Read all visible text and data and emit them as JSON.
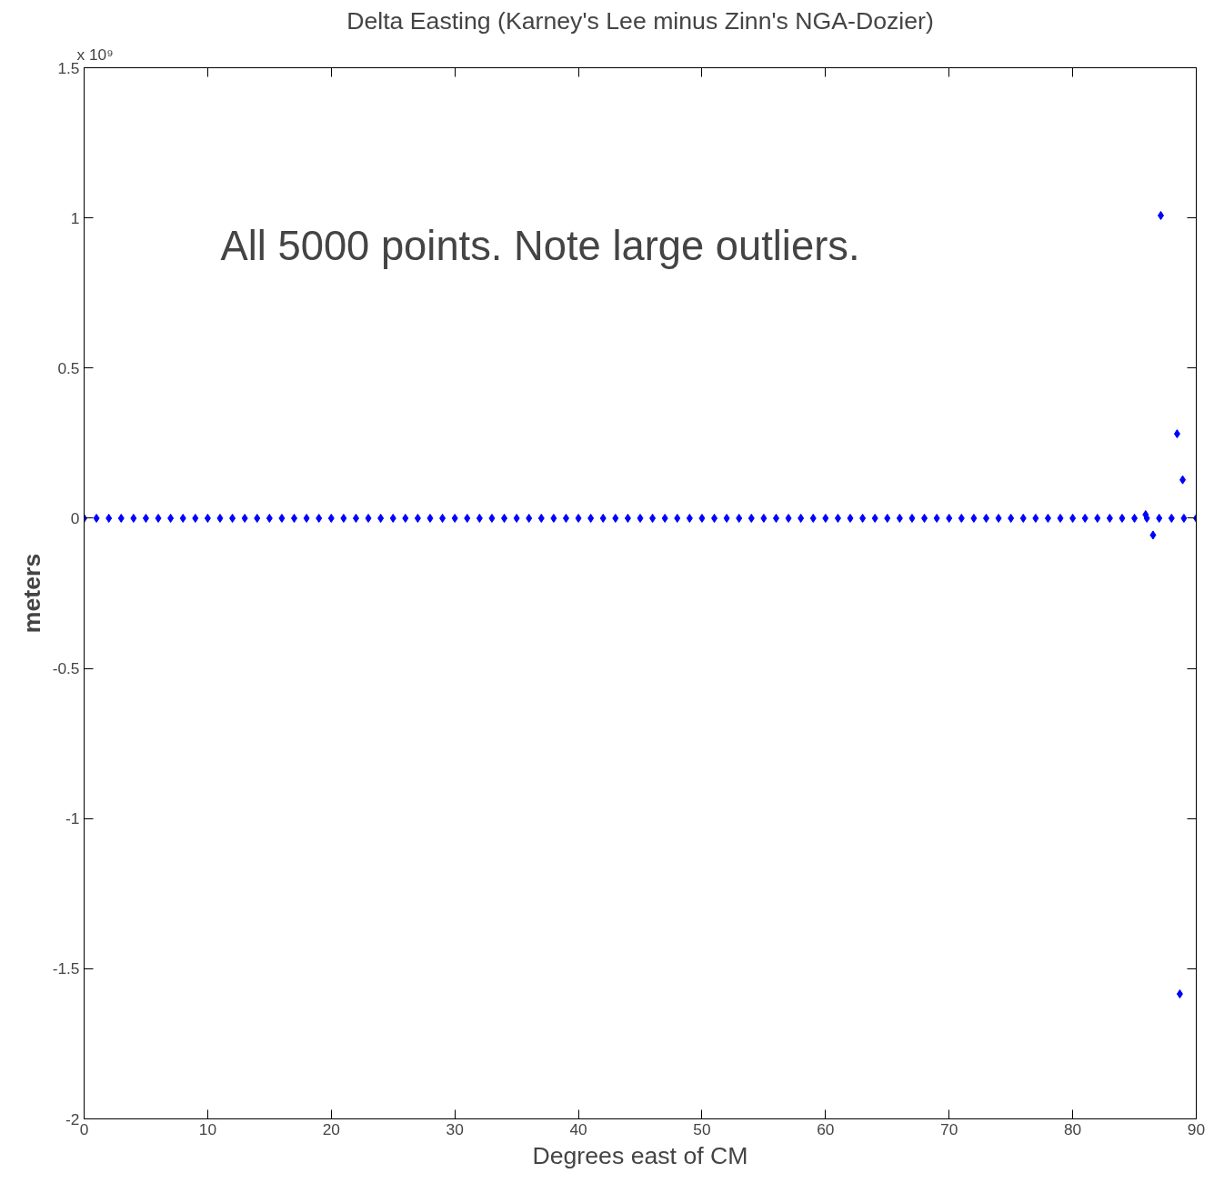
{
  "chart_data": {
    "type": "scatter",
    "title": "Delta Easting (Karney's Lee minus Zinn's NGA-Dozier)",
    "xlabel": "Degrees east of CM",
    "ylabel": "meters",
    "annotations": [
      "x 10⁹",
      "All 5000 points.  Note large outliers."
    ],
    "series": [
      {
        "color": "#0000ff",
        "x": [
          0,
          1,
          2,
          3,
          4,
          5,
          6,
          7,
          8,
          9,
          10,
          11,
          12,
          13,
          14,
          15,
          16,
          17,
          18,
          19,
          20,
          21,
          22,
          23,
          24,
          25,
          26,
          27,
          28,
          29,
          30,
          31,
          32,
          33,
          34,
          35,
          36,
          37,
          38,
          39,
          40,
          41,
          42,
          43,
          44,
          45,
          46,
          47,
          48,
          49,
          50,
          51,
          52,
          53,
          54,
          55,
          56,
          57,
          58,
          59,
          60,
          61,
          62,
          63,
          64,
          65,
          66,
          67,
          68,
          69,
          70,
          71,
          72,
          73,
          74,
          75,
          76,
          77,
          78,
          79,
          80,
          81,
          82,
          83,
          84,
          85,
          86,
          87,
          88,
          89,
          90,
          85.9,
          86.5,
          87.13,
          88.45,
          88.67,
          88.9
        ],
        "values": [
          0,
          0,
          0,
          0,
          0,
          0,
          0,
          0,
          0,
          0,
          0,
          0,
          0,
          0,
          0,
          0,
          0,
          0,
          0,
          0,
          0,
          0,
          0,
          0,
          0,
          0,
          0,
          0,
          0,
          0,
          0,
          0,
          0,
          0,
          0,
          0,
          0,
          0,
          0,
          0,
          0,
          0,
          0,
          0,
          0,
          0,
          0,
          0,
          0,
          0,
          0,
          0,
          0,
          0,
          0,
          0,
          0,
          0,
          0,
          0,
          0,
          0,
          0,
          0,
          0,
          0,
          0,
          0,
          0,
          0,
          0,
          0,
          0,
          0,
          0,
          0,
          0,
          0,
          0,
          0,
          0,
          0,
          0,
          0,
          0,
          0,
          0,
          0,
          0,
          0,
          0,
          0.012,
          -0.056,
          1.008,
          0.281,
          -1.584,
          0.128
        ]
      }
    ],
    "xlim": [
      0,
      90
    ],
    "ylim": [
      -2,
      1.5
    ],
    "xticks": [
      0,
      10,
      20,
      30,
      40,
      50,
      60,
      70,
      80,
      90
    ],
    "yticks": [
      -2,
      -1.5,
      -1,
      -0.5,
      0,
      0.5,
      1,
      1.5
    ],
    "grid": false,
    "marker": "diamond"
  }
}
